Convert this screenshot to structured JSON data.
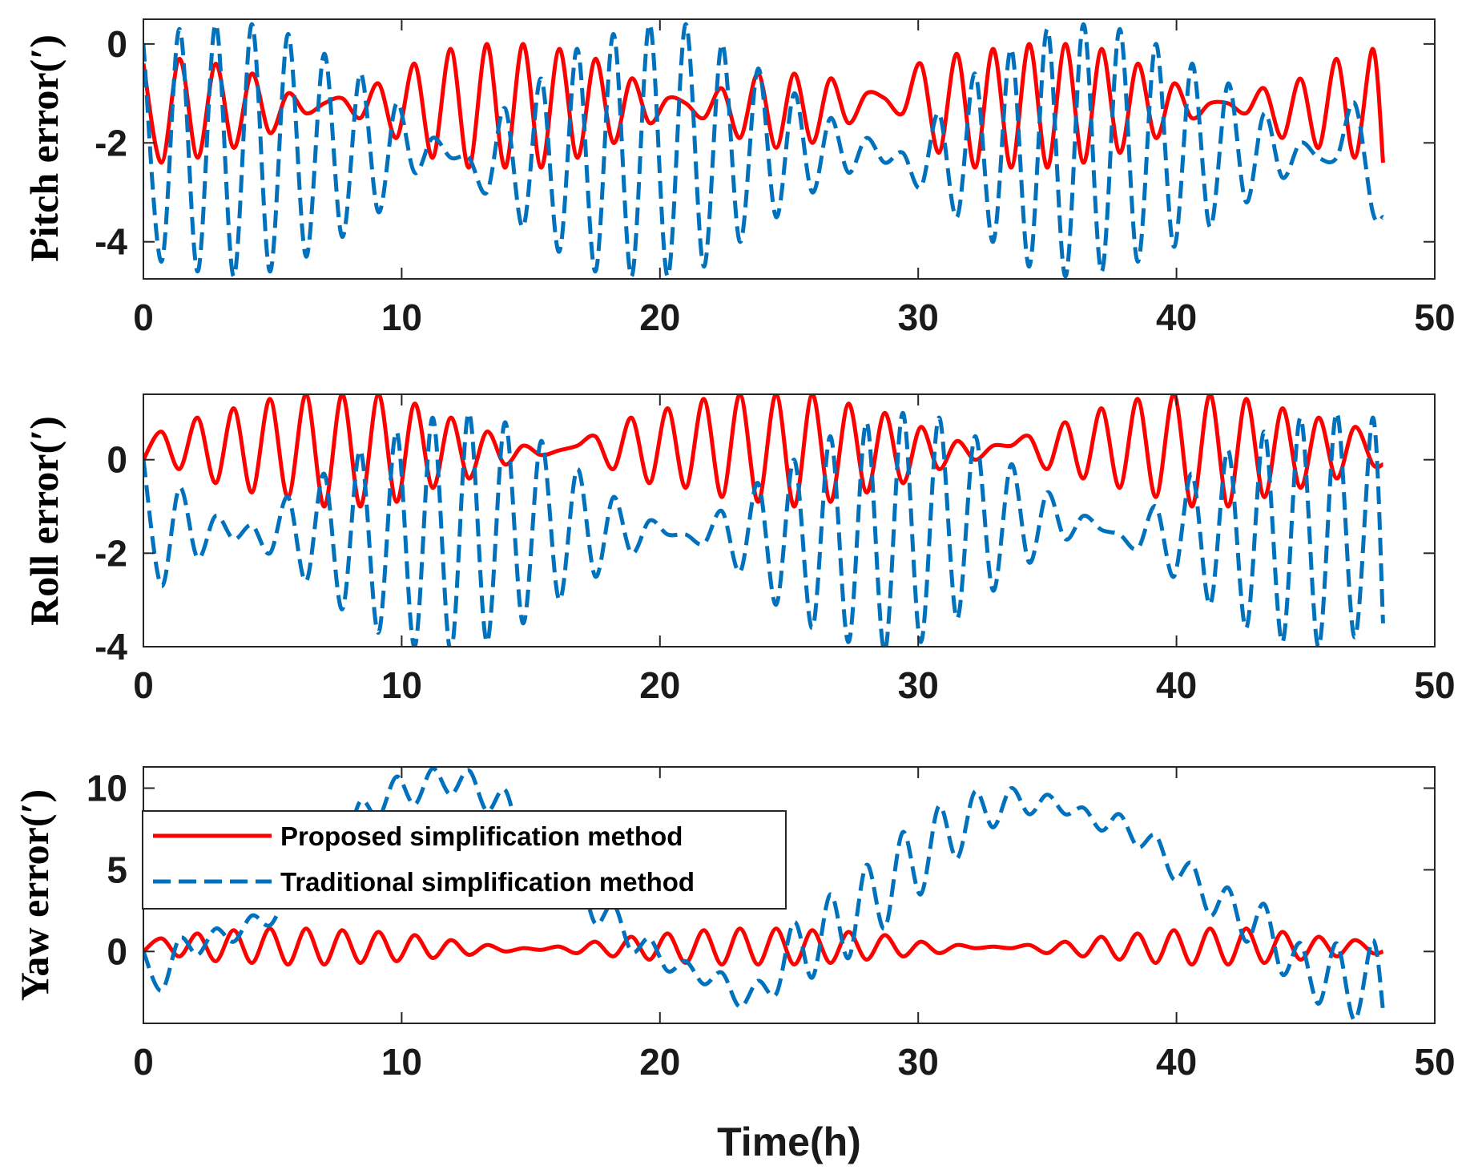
{
  "chart_data": {
    "type": "line",
    "xlabel": "Time(h)",
    "legend": {
      "location": "upper-left of bottom panel",
      "entries": [
        {
          "label": "Proposed simplification method",
          "series": "proposed"
        },
        {
          "label": "Traditional simplification method",
          "series": "traditional"
        }
      ]
    },
    "series_style": {
      "proposed": {
        "name": "Proposed simplification method",
        "color": "#FF0000",
        "line": "solid"
      },
      "traditional": {
        "name": "Traditional simplification method",
        "color": "#0072BD",
        "line": "dashed"
      }
    },
    "x_axis": {
      "range": [
        0,
        50
      ],
      "ticks": [
        0,
        10,
        20,
        30,
        40,
        50
      ],
      "tick_labels": [
        "0",
        "10",
        "20",
        "30",
        "40",
        "50"
      ]
    },
    "panels": [
      {
        "id": "pitch",
        "ylabel": "Pitch error(′)",
        "ylim": [
          -4.75,
          0.5
        ],
        "yticks": [
          0,
          -2,
          -4
        ],
        "ytick_labels": [
          "0",
          "-2",
          "-4"
        ],
        "series": [
          {
            "key": "proposed",
            "name": "Proposed simplification method",
            "approx": "oscillation period ~1.4 h, envelope beats every ~24 h",
            "x": [
              0,
              0.7,
              1.4,
              2.1,
              2.8,
              3.5,
              4.2,
              4.9,
              5.6,
              6.3,
              7.0,
              7.7,
              8.4,
              9.1,
              9.8,
              10.5,
              11.2,
              11.9,
              12.6,
              13.3,
              14.0,
              14.7,
              15.4,
              16.1,
              16.8,
              17.5,
              18.2,
              18.9,
              19.6,
              20.3,
              21.0,
              21.7,
              22.4,
              23.1,
              23.8,
              24.5,
              25.2,
              25.9,
              26.6,
              27.3,
              28.0,
              28.7,
              29.4,
              30.1,
              30.8,
              31.5,
              32.2,
              32.9,
              33.6,
              34.3,
              35.0,
              35.7,
              36.4,
              37.1,
              37.8,
              38.5,
              39.2,
              39.9,
              40.6,
              41.3,
              42.0,
              42.7,
              43.4,
              44.1,
              44.8,
              45.5,
              46.2,
              46.9,
              47.6,
              48.0
            ],
            "y": [
              -0.4,
              -2.4,
              -0.3,
              -2.3,
              -0.4,
              -2.1,
              -0.6,
              -1.8,
              -1.0,
              -1.4,
              -1.2,
              -1.1,
              -1.5,
              -0.8,
              -1.9,
              -0.4,
              -2.3,
              -0.1,
              -2.5,
              0.0,
              -2.5,
              0.0,
              -2.5,
              -0.1,
              -2.3,
              -0.3,
              -2.0,
              -0.7,
              -1.6,
              -1.1,
              -1.2,
              -1.5,
              -0.9,
              -1.9,
              -0.6,
              -2.1,
              -0.6,
              -2.0,
              -0.7,
              -1.6,
              -1.0,
              -1.1,
              -1.4,
              -0.4,
              -2.2,
              -0.2,
              -2.5,
              -0.1,
              -2.5,
              0.0,
              -2.5,
              0.0,
              -2.4,
              -0.1,
              -2.2,
              -0.4,
              -1.9,
              -0.8,
              -1.5,
              -1.2,
              -1.2,
              -1.4,
              -0.9,
              -1.9,
              -0.7,
              -2.1,
              -0.3,
              -2.3,
              -0.1,
              -2.4
            ]
          },
          {
            "key": "traditional",
            "name": "Traditional simplification method",
            "approx": "oscillation period ~1.4 h",
            "x": [
              0,
              0.7,
              1.4,
              2.1,
              2.8,
              3.5,
              4.2,
              4.9,
              5.6,
              6.3,
              7.0,
              7.7,
              8.4,
              9.1,
              9.8,
              10.5,
              11.2,
              11.9,
              12.6,
              13.3,
              14.0,
              14.7,
              15.4,
              16.1,
              16.8,
              17.5,
              18.2,
              18.9,
              19.6,
              20.3,
              21.0,
              21.7,
              22.4,
              23.1,
              23.8,
              24.5,
              25.2,
              25.9,
              26.6,
              27.3,
              28.0,
              28.7,
              29.4,
              30.1,
              30.8,
              31.5,
              32.2,
              32.9,
              33.6,
              34.3,
              35.0,
              35.7,
              36.4,
              37.1,
              37.8,
              38.5,
              39.2,
              39.9,
              40.6,
              41.3,
              42.0,
              42.7,
              43.4,
              44.1,
              44.8,
              45.5,
              46.2,
              46.9,
              47.6,
              48.0
            ],
            "y": [
              0.0,
              -4.4,
              0.3,
              -4.6,
              0.4,
              -4.7,
              0.4,
              -4.6,
              0.2,
              -4.3,
              -0.2,
              -3.9,
              -0.6,
              -3.4,
              -1.2,
              -2.6,
              -1.9,
              -2.3,
              -2.3,
              -3.0,
              -1.3,
              -3.7,
              -0.7,
              -4.2,
              -0.1,
              -4.6,
              0.2,
              -4.7,
              0.4,
              -4.7,
              0.4,
              -4.5,
              0.0,
              -4.0,
              -0.5,
              -3.5,
              -1.0,
              -3.0,
              -1.5,
              -2.6,
              -1.9,
              -2.4,
              -2.2,
              -2.9,
              -1.4,
              -3.5,
              -0.6,
              -4.0,
              -0.1,
              -4.5,
              0.3,
              -4.7,
              0.4,
              -4.6,
              0.3,
              -4.4,
              0.0,
              -4.1,
              -0.4,
              -3.7,
              -0.8,
              -3.2,
              -1.4,
              -2.7,
              -2.0,
              -2.3,
              -2.3,
              -1.2,
              -3.4,
              -3.5
            ]
          }
        ]
      },
      {
        "id": "roll",
        "ylabel": "Roll error(′)",
        "ylim": [
          -4.0,
          1.4
        ],
        "yticks": [
          0,
          -2,
          -4
        ],
        "ytick_labels": [
          "0",
          "-2",
          "-4"
        ],
        "series": [
          {
            "key": "proposed",
            "name": "Proposed simplification method",
            "approx": "oscillation period ~1.4 h",
            "x": [
              0,
              0.7,
              1.4,
              2.1,
              2.8,
              3.5,
              4.2,
              4.9,
              5.6,
              6.3,
              7.0,
              7.7,
              8.4,
              9.1,
              9.8,
              10.5,
              11.2,
              11.9,
              12.6,
              13.3,
              14.0,
              14.7,
              15.4,
              16.1,
              16.8,
              17.5,
              18.2,
              18.9,
              19.6,
              20.3,
              21.0,
              21.7,
              22.4,
              23.1,
              23.8,
              24.5,
              25.2,
              25.9,
              26.6,
              27.3,
              28.0,
              28.7,
              29.4,
              30.1,
              30.8,
              31.5,
              32.2,
              32.9,
              33.6,
              34.3,
              35.0,
              35.7,
              36.4,
              37.1,
              37.8,
              38.5,
              39.2,
              39.9,
              40.6,
              41.3,
              42.0,
              42.7,
              43.4,
              44.1,
              44.8,
              45.5,
              46.2,
              46.9,
              47.6,
              48.0
            ],
            "y": [
              0.0,
              0.6,
              -0.2,
              0.9,
              -0.5,
              1.1,
              -0.7,
              1.3,
              -0.8,
              1.4,
              -1.0,
              1.4,
              -1.0,
              1.4,
              -0.9,
              1.2,
              -0.6,
              0.9,
              -0.4,
              0.6,
              -0.1,
              0.3,
              0.1,
              0.2,
              0.3,
              0.5,
              -0.2,
              0.9,
              -0.5,
              1.1,
              -0.6,
              1.3,
              -0.8,
              1.4,
              -0.9,
              1.4,
              -1.0,
              1.4,
              -0.9,
              1.2,
              -0.7,
              1.0,
              -0.5,
              0.7,
              -0.2,
              0.4,
              0.0,
              0.3,
              0.3,
              0.5,
              -0.2,
              0.8,
              -0.4,
              1.1,
              -0.6,
              1.3,
              -0.8,
              1.4,
              -1.0,
              1.4,
              -1.0,
              1.3,
              -0.8,
              1.1,
              -0.6,
              0.9,
              -0.4,
              0.7,
              -0.1,
              -0.1
            ]
          },
          {
            "key": "traditional",
            "name": "Traditional simplification method",
            "approx": "oscillation period ~1.4 h",
            "x": [
              0,
              0.7,
              1.4,
              2.1,
              2.8,
              3.5,
              4.2,
              4.9,
              5.6,
              6.3,
              7.0,
              7.7,
              8.4,
              9.1,
              9.8,
              10.5,
              11.2,
              11.9,
              12.6,
              13.3,
              14.0,
              14.7,
              15.4,
              16.1,
              16.8,
              17.5,
              18.2,
              18.9,
              19.6,
              20.3,
              21.0,
              21.7,
              22.4,
              23.1,
              23.8,
              24.5,
              25.2,
              25.9,
              26.6,
              27.3,
              28.0,
              28.7,
              29.4,
              30.1,
              30.8,
              31.5,
              32.2,
              32.9,
              33.6,
              34.3,
              35.0,
              35.7,
              36.4,
              37.1,
              37.8,
              38.5,
              39.2,
              39.9,
              40.6,
              41.3,
              42.0,
              42.7,
              43.4,
              44.1,
              44.8,
              45.5,
              46.2,
              46.9,
              47.6,
              48.0
            ],
            "y": [
              0.0,
              -2.7,
              -0.6,
              -2.1,
              -1.2,
              -1.7,
              -1.4,
              -2.0,
              -0.8,
              -2.6,
              -0.3,
              -3.2,
              0.2,
              -3.7,
              0.6,
              -4.0,
              0.9,
              -4.1,
              1.0,
              -3.9,
              0.8,
              -3.5,
              0.4,
              -3.0,
              -0.2,
              -2.5,
              -0.8,
              -2.0,
              -1.3,
              -1.6,
              -1.6,
              -1.8,
              -1.1,
              -2.4,
              -0.5,
              -3.1,
              0.0,
              -3.6,
              0.5,
              -3.9,
              0.8,
              -4.1,
              1.0,
              -3.9,
              0.9,
              -3.4,
              0.5,
              -2.8,
              -0.1,
              -2.2,
              -0.7,
              -1.7,
              -1.2,
              -1.5,
              -1.6,
              -1.9,
              -1.0,
              -2.5,
              -0.3,
              -3.1,
              0.2,
              -3.6,
              0.6,
              -3.9,
              0.9,
              -4.0,
              1.0,
              -3.8,
              0.9,
              -3.5
            ]
          }
        ]
      },
      {
        "id": "yaw",
        "ylabel": "Yaw error(′)",
        "ylim": [
          -4.4,
          11.3
        ],
        "yticks": [
          0,
          5,
          10
        ],
        "ytick_labels": [
          "0",
          "5",
          "10"
        ],
        "series": [
          {
            "key": "proposed",
            "name": "Proposed simplification method",
            "approx": "oscillation period ~1.4 h",
            "x": [
              0,
              0.7,
              1.4,
              2.1,
              2.8,
              3.5,
              4.2,
              4.9,
              5.6,
              6.3,
              7.0,
              7.7,
              8.4,
              9.1,
              9.8,
              10.5,
              11.2,
              11.9,
              12.6,
              13.3,
              14.0,
              14.7,
              15.4,
              16.1,
              16.8,
              17.5,
              18.2,
              18.9,
              19.6,
              20.3,
              21.0,
              21.7,
              22.4,
              23.1,
              23.8,
              24.5,
              25.2,
              25.9,
              26.6,
              27.3,
              28.0,
              28.7,
              29.4,
              30.1,
              30.8,
              31.5,
              32.2,
              32.9,
              33.6,
              34.3,
              35.0,
              35.7,
              36.4,
              37.1,
              37.8,
              38.5,
              39.2,
              39.9,
              40.6,
              41.3,
              42.0,
              42.7,
              43.4,
              44.1,
              44.8,
              45.5,
              46.2,
              46.9,
              47.6,
              48.0
            ],
            "y": [
              0.0,
              0.8,
              -0.3,
              1.1,
              -0.6,
              1.3,
              -0.7,
              1.4,
              -0.8,
              1.4,
              -0.8,
              1.3,
              -0.7,
              1.2,
              -0.6,
              1.0,
              -0.4,
              0.7,
              -0.2,
              0.4,
              0.0,
              0.2,
              0.1,
              0.3,
              -0.1,
              0.6,
              -0.3,
              0.9,
              -0.5,
              1.1,
              -0.7,
              1.3,
              -0.8,
              1.4,
              -0.8,
              1.4,
              -0.8,
              1.3,
              -0.7,
              1.2,
              -0.5,
              1.0,
              -0.3,
              0.6,
              -0.1,
              0.4,
              0.2,
              0.3,
              0.2,
              0.4,
              -0.1,
              0.6,
              -0.3,
              0.9,
              -0.5,
              1.1,
              -0.7,
              1.3,
              -0.8,
              1.4,
              -0.8,
              1.4,
              -0.7,
              1.2,
              -0.5,
              0.9,
              -0.3,
              0.7,
              -0.1,
              0.0
            ]
          },
          {
            "key": "traditional",
            "name": "Traditional simplification method",
            "approx": "large slow envelope plus ~1.4 h oscillation",
            "x": [
              0,
              0.7,
              1.4,
              2.1,
              2.8,
              3.5,
              4.2,
              4.9,
              5.6,
              6.3,
              7.0,
              7.7,
              8.4,
              9.1,
              9.8,
              10.5,
              11.2,
              11.9,
              12.6,
              13.3,
              14.0,
              14.7,
              15.4,
              16.1,
              16.8,
              17.5,
              18.2,
              18.9,
              19.6,
              20.3,
              21.0,
              21.7,
              22.4,
              23.1,
              23.8,
              24.5,
              25.2,
              25.9,
              26.6,
              27.3,
              28.0,
              28.7,
              29.4,
              30.1,
              30.8,
              31.5,
              32.2,
              32.9,
              33.6,
              34.3,
              35.0,
              35.7,
              36.4,
              37.1,
              37.8,
              38.5,
              39.2,
              39.9,
              40.6,
              41.3,
              42.0,
              42.7,
              43.4,
              44.1,
              44.8,
              45.5,
              46.2,
              46.9,
              47.6,
              48.0
            ],
            "y": [
              0.0,
              -2.4,
              0.8,
              -0.2,
              1.4,
              0.6,
              2.2,
              1.6,
              3.5,
              3.4,
              6.4,
              5.8,
              9.2,
              8.2,
              10.7,
              9.0,
              11.2,
              9.6,
              11.1,
              8.6,
              9.9,
              6.4,
              7.5,
              3.6,
              5.1,
              1.7,
              2.9,
              0.0,
              0.8,
              -1.2,
              -0.6,
              -2.0,
              -1.3,
              -3.4,
              -1.8,
              -2.6,
              1.8,
              -1.6,
              3.5,
              -0.4,
              5.3,
              1.4,
              7.3,
              3.5,
              8.9,
              5.7,
              9.8,
              7.6,
              10.0,
              8.4,
              9.6,
              8.4,
              8.8,
              7.4,
              8.4,
              6.4,
              7.1,
              4.4,
              5.4,
              2.2,
              3.9,
              0.6,
              2.9,
              -1.4,
              0.5,
              -3.2,
              0.5,
              -4.2,
              0.7,
              -3.6
            ]
          }
        ]
      }
    ]
  }
}
